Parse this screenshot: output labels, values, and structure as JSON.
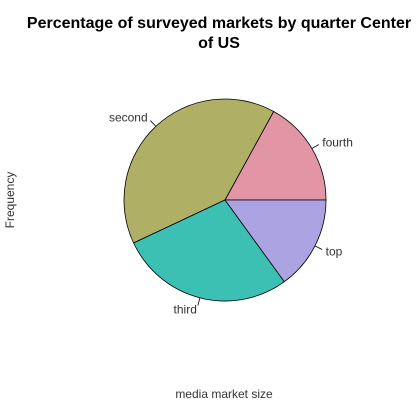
{
  "chart_data": {
    "type": "pie",
    "title": "Percentage of surveyed markets by quarter Center of US",
    "title_lines": [
      "Percentage of surveyed markets by quarter Center",
      "of US"
    ],
    "xlabel": "media market size",
    "ylabel": "Frequency",
    "slices": [
      {
        "label": "fourth",
        "value": 17,
        "color": "#e295a5"
      },
      {
        "label": "second",
        "value": 40,
        "color": "#afaf66"
      },
      {
        "label": "third",
        "value": 28,
        "color": "#3cc0b4"
      },
      {
        "label": "top",
        "value": 15,
        "color": "#aca3e2"
      }
    ]
  }
}
